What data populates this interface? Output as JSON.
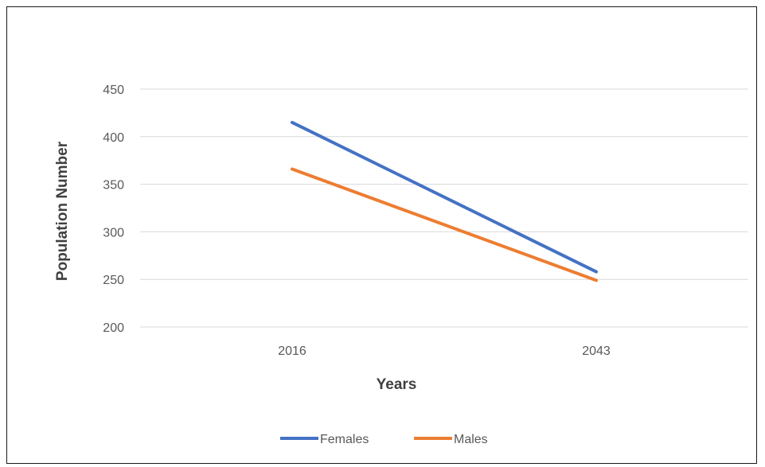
{
  "chart_data": {
    "type": "line",
    "categories": [
      "2016",
      "2043"
    ],
    "series": [
      {
        "name": "Females",
        "values": [
          415,
          258
        ],
        "color": "#4472c4"
      },
      {
        "name": "Males",
        "values": [
          366,
          249
        ],
        "color": "#ed7d31"
      }
    ],
    "xlabel": "Years",
    "ylabel": "Population Number",
    "ylim": [
      200,
      450
    ],
    "yticks": [
      "200",
      "250",
      "300",
      "350",
      "400",
      "450"
    ],
    "grid": true,
    "legend_position": "bottom"
  }
}
